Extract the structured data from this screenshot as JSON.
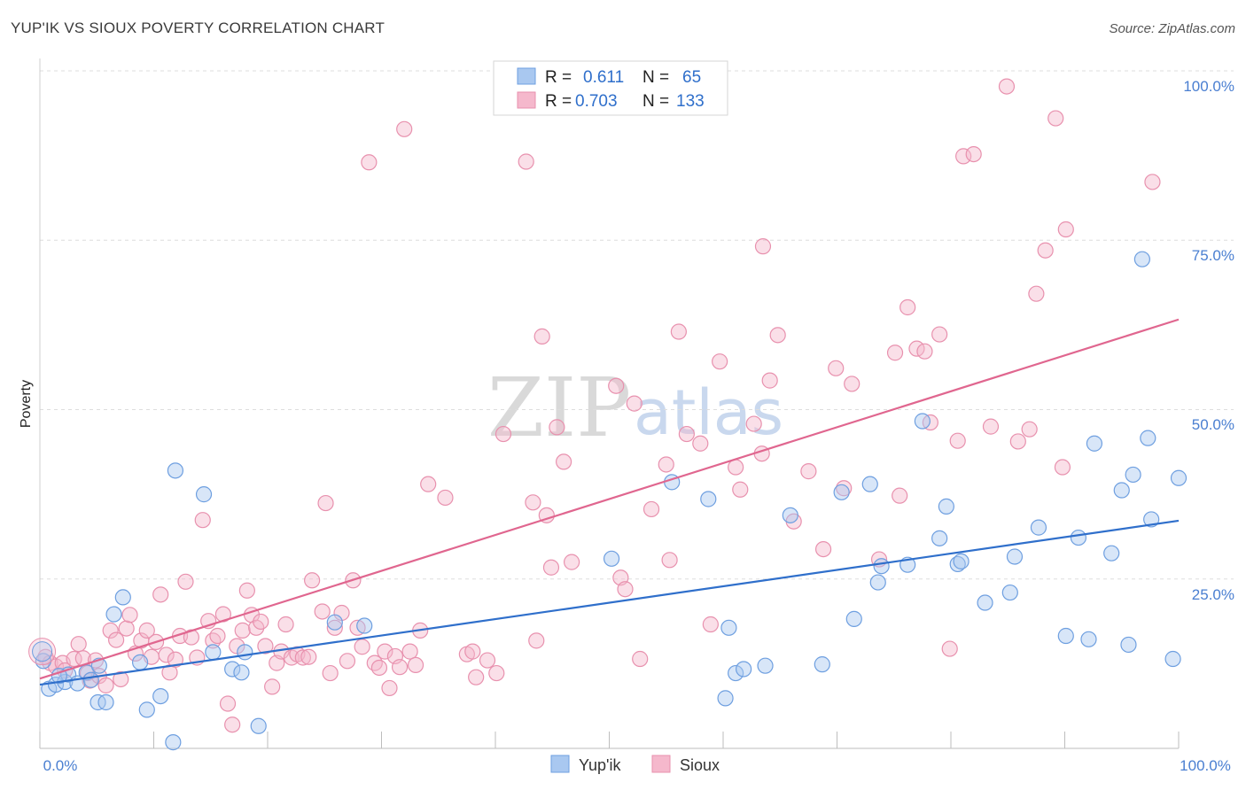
{
  "header": {
    "title": "YUP'IK VS SIOUX POVERTY CORRELATION CHART",
    "source": "Source: ZipAtlas.com"
  },
  "watermark": {
    "zip": "ZIP",
    "atlas": "atlas"
  },
  "colors": {
    "yupik_fill": "#a9c8f0",
    "yupik_stroke": "#6e9fe0",
    "yupik_line": "#2f6fcb",
    "sioux_fill": "#f5b8cc",
    "sioux_stroke": "#e891ae",
    "sioux_line": "#e0668f",
    "grid": "#dddddd",
    "tick_text": "#4a7fd1"
  },
  "legend": {
    "rows": [
      {
        "r_label": "R =",
        "r_value": "0.611",
        "n_label": "N =",
        "n_value": "65"
      },
      {
        "r_label": "R =",
        "r_value": "0.703",
        "n_label": "N =",
        "n_value": "133"
      }
    ]
  },
  "chart_data": {
    "type": "scatter",
    "title": "YUP'IK VS SIOUX POVERTY CORRELATION CHART",
    "xlabel": "",
    "ylabel": "Poverty",
    "xlim": [
      0,
      100
    ],
    "ylim": [
      0,
      100
    ],
    "x_tick_labels": [
      "0.0%",
      "100.0%"
    ],
    "y_tick_labels": [
      "25.0%",
      "50.0%",
      "75.0%",
      "100.0%"
    ],
    "y_ticks": [
      25,
      50,
      75,
      100
    ],
    "grid": true,
    "legend_position": "top-center",
    "series": [
      {
        "name": "Yup'ik",
        "r": 0.611,
        "n": 65,
        "trend": {
          "x": [
            0,
            100
          ],
          "y": [
            9.4,
            33.6
          ]
        },
        "points": [
          [
            0.3,
            12.9
          ],
          [
            0.8,
            8.8
          ],
          [
            1.4,
            9.4
          ],
          [
            2.2,
            9.8
          ],
          [
            2.5,
            10.9
          ],
          [
            3.3,
            9.6
          ],
          [
            4.1,
            11.2
          ],
          [
            4.5,
            10.1
          ],
          [
            5.1,
            6.8
          ],
          [
            5.2,
            12.2
          ],
          [
            5.8,
            6.8
          ],
          [
            6.5,
            19.8
          ],
          [
            7.3,
            22.3
          ],
          [
            8.8,
            12.7
          ],
          [
            9.4,
            5.7
          ],
          [
            10.6,
            7.7
          ],
          [
            11.7,
            0.9
          ],
          [
            11.9,
            41.0
          ],
          [
            14.4,
            37.5
          ],
          [
            15.2,
            14.2
          ],
          [
            16.9,
            11.7
          ],
          [
            17.7,
            11.2
          ],
          [
            18.0,
            14.2
          ],
          [
            19.2,
            3.3
          ],
          [
            25.9,
            18.6
          ],
          [
            28.5,
            18.1
          ],
          [
            50.2,
            28.0
          ],
          [
            55.5,
            39.3
          ],
          [
            58.7,
            36.8
          ],
          [
            60.2,
            7.4
          ],
          [
            60.5,
            17.8
          ],
          [
            61.1,
            11.1
          ],
          [
            61.8,
            11.7
          ],
          [
            63.7,
            12.2
          ],
          [
            65.9,
            34.4
          ],
          [
            68.7,
            12.4
          ],
          [
            70.4,
            37.8
          ],
          [
            71.5,
            19.1
          ],
          [
            72.9,
            39.0
          ],
          [
            73.6,
            24.5
          ],
          [
            73.9,
            26.9
          ],
          [
            76.2,
            27.1
          ],
          [
            77.5,
            48.3
          ],
          [
            79.0,
            31.0
          ],
          [
            79.6,
            35.7
          ],
          [
            80.6,
            27.2
          ],
          [
            80.9,
            27.6
          ],
          [
            83.0,
            21.5
          ],
          [
            85.2,
            23.0
          ],
          [
            85.6,
            28.3
          ],
          [
            87.7,
            32.6
          ],
          [
            90.1,
            16.6
          ],
          [
            91.2,
            31.1
          ],
          [
            92.1,
            16.1
          ],
          [
            92.6,
            45.0
          ],
          [
            94.1,
            28.8
          ],
          [
            95.0,
            38.1
          ],
          [
            95.6,
            15.3
          ],
          [
            96.0,
            40.4
          ],
          [
            96.8,
            72.2
          ],
          [
            97.3,
            45.8
          ],
          [
            97.6,
            33.8
          ],
          [
            99.5,
            13.2
          ],
          [
            100.0,
            39.9
          ],
          [
            1.7,
            10.7
          ]
        ]
      },
      {
        "name": "Sioux",
        "r": 0.703,
        "n": 133,
        "trend": {
          "x": [
            0,
            100
          ],
          "y": [
            10.3,
            63.3
          ]
        },
        "points": [
          [
            0.5,
            13.5
          ],
          [
            0.9,
            12.6
          ],
          [
            1.4,
            12.1
          ],
          [
            2.0,
            12.6
          ],
          [
            2.2,
            11.5
          ],
          [
            3.0,
            13.2
          ],
          [
            3.4,
            15.4
          ],
          [
            3.8,
            13.3
          ],
          [
            4.2,
            11.1
          ],
          [
            4.4,
            10.0
          ],
          [
            4.9,
            13.0
          ],
          [
            5.2,
            10.7
          ],
          [
            5.8,
            9.3
          ],
          [
            6.2,
            17.4
          ],
          [
            6.7,
            16.0
          ],
          [
            7.1,
            10.2
          ],
          [
            7.6,
            17.7
          ],
          [
            7.9,
            19.7
          ],
          [
            8.4,
            14.0
          ],
          [
            8.9,
            15.9
          ],
          [
            9.4,
            17.4
          ],
          [
            9.8,
            13.5
          ],
          [
            10.2,
            15.7
          ],
          [
            10.6,
            22.7
          ],
          [
            11.1,
            13.8
          ],
          [
            11.4,
            11.2
          ],
          [
            11.9,
            13.1
          ],
          [
            12.3,
            16.6
          ],
          [
            12.8,
            24.6
          ],
          [
            13.3,
            16.4
          ],
          [
            13.8,
            13.4
          ],
          [
            14.3,
            33.7
          ],
          [
            14.8,
            18.8
          ],
          [
            15.2,
            15.9
          ],
          [
            15.6,
            16.6
          ],
          [
            16.1,
            19.8
          ],
          [
            16.5,
            6.6
          ],
          [
            16.9,
            3.5
          ],
          [
            17.3,
            15.1
          ],
          [
            17.8,
            17.4
          ],
          [
            18.2,
            23.3
          ],
          [
            18.6,
            19.7
          ],
          [
            19.0,
            17.8
          ],
          [
            19.4,
            18.7
          ],
          [
            19.8,
            15.1
          ],
          [
            20.4,
            9.1
          ],
          [
            20.8,
            12.6
          ],
          [
            21.2,
            14.3
          ],
          [
            21.6,
            18.3
          ],
          [
            22.1,
            13.4
          ],
          [
            22.6,
            13.9
          ],
          [
            23.1,
            13.4
          ],
          [
            23.6,
            13.5
          ],
          [
            23.9,
            24.8
          ],
          [
            24.8,
            20.2
          ],
          [
            25.1,
            36.2
          ],
          [
            25.5,
            11.1
          ],
          [
            25.9,
            17.8
          ],
          [
            26.5,
            20.0
          ],
          [
            27.0,
            12.9
          ],
          [
            27.5,
            24.8
          ],
          [
            27.9,
            17.8
          ],
          [
            28.3,
            15.0
          ],
          [
            28.9,
            86.5
          ],
          [
            29.4,
            12.6
          ],
          [
            29.8,
            11.9
          ],
          [
            30.3,
            14.3
          ],
          [
            30.7,
            8.9
          ],
          [
            31.2,
            13.6
          ],
          [
            31.6,
            12.0
          ],
          [
            32.0,
            91.4
          ],
          [
            32.5,
            14.3
          ],
          [
            33.0,
            12.3
          ],
          [
            33.4,
            17.4
          ],
          [
            34.1,
            39.0
          ],
          [
            35.6,
            37.0
          ],
          [
            37.5,
            13.9
          ],
          [
            38.0,
            14.3
          ],
          [
            38.3,
            10.5
          ],
          [
            39.3,
            13.0
          ],
          [
            40.1,
            11.1
          ],
          [
            40.7,
            46.4
          ],
          [
            42.7,
            86.6
          ],
          [
            43.3,
            36.3
          ],
          [
            43.6,
            15.9
          ],
          [
            44.1,
            60.8
          ],
          [
            44.5,
            34.4
          ],
          [
            44.9,
            26.7
          ],
          [
            45.4,
            47.4
          ],
          [
            46.0,
            42.3
          ],
          [
            46.7,
            27.5
          ],
          [
            50.6,
            53.5
          ],
          [
            51.0,
            25.2
          ],
          [
            51.4,
            23.5
          ],
          [
            52.2,
            50.9
          ],
          [
            52.7,
            13.2
          ],
          [
            53.7,
            35.3
          ],
          [
            55.0,
            41.9
          ],
          [
            55.3,
            27.8
          ],
          [
            56.1,
            61.5
          ],
          [
            56.8,
            46.4
          ],
          [
            58.0,
            45.0
          ],
          [
            58.9,
            18.3
          ],
          [
            59.7,
            57.1
          ],
          [
            61.1,
            41.5
          ],
          [
            61.5,
            38.2
          ],
          [
            62.7,
            47.9
          ],
          [
            63.4,
            43.5
          ],
          [
            63.5,
            74.1
          ],
          [
            64.1,
            54.3
          ],
          [
            64.8,
            61.0
          ],
          [
            66.2,
            33.5
          ],
          [
            67.5,
            40.9
          ],
          [
            68.8,
            29.4
          ],
          [
            69.9,
            56.1
          ],
          [
            70.6,
            38.4
          ],
          [
            71.3,
            53.8
          ],
          [
            73.7,
            27.9
          ],
          [
            75.1,
            58.4
          ],
          [
            75.5,
            37.3
          ],
          [
            76.2,
            65.1
          ],
          [
            77.0,
            59.0
          ],
          [
            77.7,
            58.6
          ],
          [
            78.2,
            48.1
          ],
          [
            79.0,
            61.1
          ],
          [
            79.9,
            14.7
          ],
          [
            80.6,
            45.4
          ],
          [
            81.1,
            87.4
          ],
          [
            82.0,
            87.7
          ],
          [
            83.5,
            47.5
          ],
          [
            84.9,
            97.7
          ],
          [
            85.9,
            45.3
          ],
          [
            86.9,
            47.1
          ],
          [
            87.5,
            67.1
          ],
          [
            88.3,
            73.5
          ],
          [
            89.2,
            93.0
          ],
          [
            89.8,
            41.5
          ],
          [
            90.1,
            76.6
          ],
          [
            97.7,
            83.6
          ]
        ]
      }
    ]
  },
  "bottom_legend": {
    "items": [
      "Yup'ik",
      "Sioux"
    ]
  }
}
